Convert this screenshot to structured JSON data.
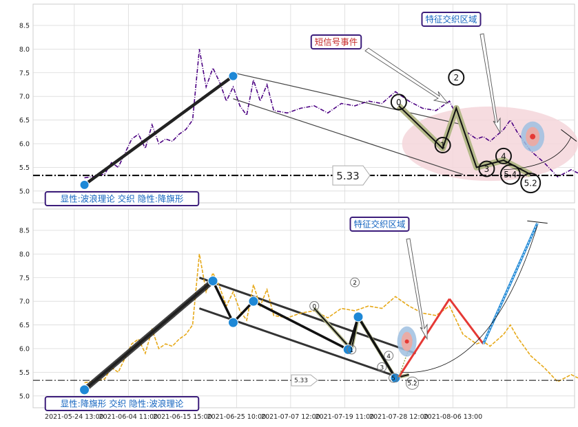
{
  "chart_data": [
    {
      "type": "line",
      "panel": "top",
      "ylim": [
        4.75,
        8.95
      ],
      "yticks": [
        5.0,
        5.5,
        6.0,
        6.5,
        7.0,
        7.5,
        8.0,
        8.5
      ],
      "ytick_labels": [
        "5.0",
        "5.5",
        "6.0",
        "6.5",
        "7.0",
        "7.5",
        "8.0",
        "8.5"
      ],
      "grid": true,
      "price_line_color": "#4b0082",
      "price_series": {
        "x": [
          0,
          2,
          3,
          4,
          5,
          6,
          7,
          8,
          9,
          10,
          11,
          12,
          13,
          14,
          15,
          16,
          17,
          18,
          19,
          20,
          21,
          22,
          23,
          24,
          25,
          26,
          27,
          28,
          30,
          32,
          34,
          36,
          38,
          40,
          42,
          44,
          46,
          48,
          50,
          52,
          54,
          55,
          56,
          58,
          59,
          60,
          62,
          63,
          64,
          66,
          68,
          70,
          72,
          73
        ],
        "y": [
          5.28,
          5.32,
          5.36,
          5.6,
          5.5,
          5.8,
          6.1,
          6.2,
          5.9,
          6.4,
          6.0,
          6.1,
          6.05,
          6.2,
          6.3,
          6.5,
          8.0,
          7.2,
          7.6,
          7.3,
          6.9,
          7.2,
          6.8,
          6.6,
          7.35,
          6.9,
          7.25,
          6.7,
          6.65,
          6.75,
          6.8,
          6.65,
          6.85,
          6.8,
          6.9,
          6.85,
          7.1,
          6.9,
          6.75,
          6.7,
          6.9,
          6.6,
          6.3,
          6.1,
          6.15,
          6.05,
          6.3,
          6.5,
          6.25,
          5.85,
          5.6,
          5.3,
          5.45,
          5.38
        ]
      },
      "hline": {
        "value": 5.33,
        "label": "5.33"
      },
      "pattern_points": [
        {
          "x": 0,
          "y": 5.13
        },
        {
          "x": 22,
          "y": 7.43
        }
      ],
      "channel": [
        {
          "x1": 22,
          "y1": 7.5,
          "x2": 56,
          "y2": 6.4
        },
        {
          "x1": 22,
          "y1": 6.95,
          "x2": 56,
          "y2": 5.35
        }
      ],
      "wave": {
        "x": [
          46.5,
          53,
          55,
          58,
          62,
          66
        ],
        "y": [
          6.8,
          5.9,
          6.75,
          5.5,
          5.65,
          5.35
        ]
      },
      "wave_labels": [
        {
          "text": "0",
          "x": 46.5,
          "y": 6.88
        },
        {
          "text": "1",
          "x": 53,
          "y": 5.97
        },
        {
          "text": "2",
          "x": 55,
          "y": 7.4
        },
        {
          "text": "3",
          "x": 59.5,
          "y": 5.47
        },
        {
          "text": "4",
          "x": 62,
          "y": 5.74
        },
        {
          "text": "5.4",
          "x": 63,
          "y": 5.35
        },
        {
          "text": "5.2",
          "x": 66,
          "y": 5.17
        }
      ],
      "labels": {
        "short_signal": "短信号事件",
        "feature_zone": "特征交织区域",
        "hline_text": "5.33",
        "pattern": "显性:波浪理论 交织 隐性:降旗形"
      }
    },
    {
      "type": "line",
      "panel": "bottom",
      "ylim": [
        4.75,
        8.95
      ],
      "yticks": [
        5.0,
        5.5,
        6.0,
        6.5,
        7.0,
        7.5,
        8.0,
        8.5
      ],
      "ytick_labels": [
        "5.0",
        "5.5",
        "6.0",
        "6.5",
        "7.0",
        "7.5",
        "8.0",
        "8.5"
      ],
      "grid": true,
      "price_line_color": "#e6a817",
      "price_series": {
        "x": [
          0,
          2,
          3,
          4,
          5,
          6,
          7,
          8,
          9,
          10,
          11,
          12,
          13,
          14,
          15,
          16,
          17,
          18,
          19,
          20,
          21,
          22,
          23,
          24,
          25,
          26,
          27,
          28,
          30,
          32,
          34,
          36,
          38,
          40,
          42,
          44,
          46,
          48,
          50,
          52,
          54,
          55,
          56,
          58,
          59,
          60,
          62,
          63,
          64,
          66,
          68,
          70,
          72,
          73
        ],
        "y": [
          5.28,
          5.32,
          5.36,
          5.6,
          5.5,
          5.8,
          6.1,
          6.2,
          5.9,
          6.4,
          6.0,
          6.1,
          6.05,
          6.2,
          6.3,
          6.5,
          8.0,
          7.2,
          7.6,
          7.3,
          6.9,
          7.2,
          6.8,
          6.6,
          7.35,
          6.9,
          7.25,
          6.7,
          6.65,
          6.75,
          6.8,
          6.65,
          6.85,
          6.8,
          6.9,
          6.85,
          7.1,
          6.9,
          6.75,
          6.7,
          6.9,
          6.6,
          6.3,
          6.1,
          6.15,
          6.05,
          6.3,
          6.5,
          6.25,
          5.85,
          5.6,
          5.3,
          5.45,
          5.38
        ]
      },
      "hline": {
        "value": 5.33,
        "label": "5.33"
      },
      "pattern_points": [
        {
          "x": 0,
          "y": 5.13
        },
        {
          "x": 19,
          "y": 7.43
        },
        {
          "x": 22,
          "y": 6.55
        },
        {
          "x": 25,
          "y": 7.0
        },
        {
          "x": 39,
          "y": 5.98
        },
        {
          "x": 40.5,
          "y": 6.67
        },
        {
          "x": 46,
          "y": 5.38
        }
      ],
      "pattern_line": {
        "x": [
          0,
          19,
          22,
          25,
          39,
          40.5,
          46
        ],
        "y": [
          5.13,
          7.43,
          6.55,
          7.0,
          5.98,
          6.67,
          5.38
        ]
      },
      "channel": [
        {
          "x1": 17,
          "y1": 7.5,
          "x2": 49,
          "y2": 5.9
        },
        {
          "x1": 17,
          "y1": 6.85,
          "x2": 46,
          "y2": 5.42
        }
      ],
      "wave": {
        "x": [
          34,
          39.5,
          40.5,
          46,
          48
        ],
        "y": [
          6.85,
          5.98,
          6.67,
          5.38,
          5.45
        ]
      },
      "wave_labels": [
        {
          "text": "0",
          "x": 34,
          "y": 6.9
        },
        {
          "text": "1",
          "x": 39.5,
          "y": 5.98
        },
        {
          "text": "2",
          "x": 40,
          "y": 7.4
        },
        {
          "text": "3",
          "x": 44,
          "y": 5.61
        },
        {
          "text": "4",
          "x": 45,
          "y": 5.85
        },
        {
          "text": "5",
          "x": 45.7,
          "y": 5.38
        },
        {
          "text": "5.2",
          "x": 48.5,
          "y": 5.27
        }
      ],
      "projection": {
        "x": [
          46.5,
          54,
          59,
          67
        ],
        "y": [
          5.4,
          7.05,
          6.1,
          8.65
        ]
      },
      "labels": {
        "feature_zone": "特征交织区域",
        "hline_text": "5.33",
        "pattern": "显性:降旗形 交织 隐性:波浪理论"
      }
    }
  ],
  "x_axis": {
    "xlim": [
      -7.6,
      72.5
    ],
    "ticks": [
      -1.5,
      6.5,
      14.5,
      22.5,
      30.5,
      38.5,
      46.5,
      54.5,
      62.5
    ],
    "tick_labels": [
      "2021-05-24 13:00",
      "2021-06-04 11:00",
      "2021-06-15 15:00",
      "2021-06-25 10:00",
      "2021-07-07 12:00",
      "2021-07-19 11:00",
      "2021-07-28 12:00",
      "2021-08-06 13:00",
      ""
    ]
  },
  "colors": {
    "pattern_point": "#1e88d6",
    "wave_fill": "#b5b98a",
    "zone_ellipse": "#f5d6da",
    "hline": "#000000",
    "projection_up": "#1e88d6",
    "projection_peak": "#e53935",
    "badge_border": "#3b1c7a",
    "badge_text_blue": "#1565c0",
    "badge_text_red": "#c62828"
  }
}
